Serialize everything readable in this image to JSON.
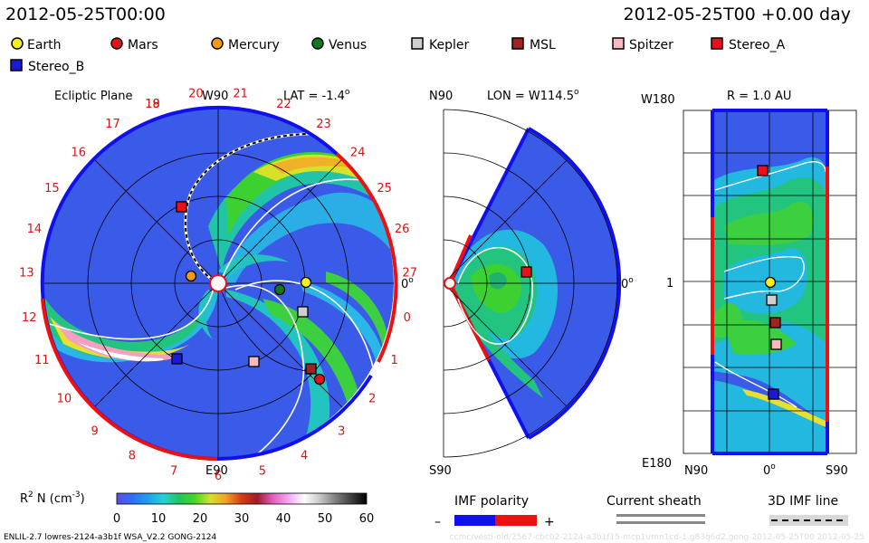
{
  "header": {
    "datetime_left": "2012-05-25T00:00",
    "datetime_right": "2012-05-25T00 +0.00 day"
  },
  "legend": {
    "items": [
      {
        "label": "Earth",
        "color": "#f7ef1e",
        "shape": "circle"
      },
      {
        "label": "Mars",
        "color": "#e8111a",
        "shape": "circle"
      },
      {
        "label": "Mercury",
        "color": "#f59a14",
        "shape": "circle"
      },
      {
        "label": "Venus",
        "color": "#117a21",
        "shape": "circle"
      },
      {
        "label": "Kepler",
        "color": "#cfcfcf",
        "shape": "square"
      },
      {
        "label": "MSL",
        "color": "#9e2323",
        "shape": "square"
      },
      {
        "label": "Spitzer",
        "color": "#f7b8c2",
        "shape": "square"
      },
      {
        "label": "Stereo_A",
        "color": "#e8111a",
        "shape": "square"
      },
      {
        "label": "Stereo_B",
        "color": "#1a1ad6",
        "shape": "square"
      }
    ]
  },
  "panels": {
    "ecliptic": {
      "title": "Ecliptic Plane",
      "top_label": "W90",
      "lat_label": "LAT = -1.4",
      "lat_sup": "o",
      "right_label": "0",
      "right_sup": "o",
      "bottom_label": "E90",
      "ring_numbers": [
        "19",
        "20",
        "21",
        "22",
        "23",
        "24",
        "25",
        "26",
        "27",
        "0",
        "1",
        "2",
        "3",
        "4",
        "5",
        "6",
        "7",
        "8",
        "9",
        "10",
        "11",
        "12",
        "13",
        "14",
        "15",
        "16",
        "17",
        "18"
      ]
    },
    "meridional": {
      "top_left": "N90",
      "lon_label": "LON = W114.5",
      "lon_sup": "o",
      "right_label": "0",
      "right_sup": "o",
      "bottom_left": "S90"
    },
    "radial": {
      "top_left": "W180",
      "title": "R = 1.0 AU",
      "left_mid": "1",
      "bottom_left": "E180",
      "x_labels": [
        "N90",
        "0",
        "S90"
      ],
      "x_mid_sup": "o"
    }
  },
  "colorbar": {
    "label_main": "R",
    "label_sup": "2",
    "label_rest": " N (cm",
    "label_exp": "-3",
    "label_end": ")",
    "ticks": [
      "0",
      "10",
      "20",
      "30",
      "40",
      "50",
      "60"
    ],
    "colors": [
      "#5a4de6",
      "#2f6ff2",
      "#1f9fef",
      "#22d4d4",
      "#21c45a",
      "#48d624",
      "#d6e02a",
      "#f0a028",
      "#d23c14",
      "#a01a2a",
      "#e060c0",
      "#f2a8f2",
      "#ffffff",
      "#c8c8c8",
      "#808080",
      "#404040",
      "#000000"
    ]
  },
  "imf": {
    "title": "IMF polarity",
    "minus": "–",
    "plus": "+",
    "neg_color": "#1010ee",
    "pos_color": "#ee1010"
  },
  "sheath": {
    "title": "Current sheath"
  },
  "imfline": {
    "title": "3D IMF line"
  },
  "footer": {
    "model": "ENLIL-2.7 lowres-2124-a3b1f WSA_V2.2 GONG-2124",
    "watermark": "ccmc/vesti-old/2567-cbc02-2124-a3b1f15-mcp1umn1cd-1.g83q6d2.gong-2012-05-25T00    2012-05-25"
  },
  "chart_data": [
    {
      "type": "heatmap",
      "title": "Ecliptic Plane",
      "view": "polar, heliocentric ecliptic plane",
      "quantity": "R^2 N (cm^-3)",
      "value_range": [
        0,
        60
      ],
      "bodies": [
        "Earth",
        "Mars",
        "Mercury",
        "Venus",
        "Kepler",
        "MSL",
        "Spitzer",
        "Stereo_A",
        "Stereo_B"
      ]
    },
    {
      "type": "heatmap",
      "title": "LON = W114.5",
      "view": "meridional slice N90 to S90",
      "quantity": "R^2 N (cm^-3)",
      "value_range": [
        0,
        60
      ],
      "bodies": [
        "Stereo_A"
      ]
    },
    {
      "type": "heatmap",
      "title": "R = 1.0 AU",
      "view": "latitude N90–S90 vs longitude W180–E180",
      "quantity": "R^2 N (cm^-3)",
      "value_range": [
        0,
        60
      ],
      "bodies": [
        "Stereo_A",
        "Earth",
        "Kepler",
        "MSL",
        "Spitzer",
        "Stereo_B"
      ]
    }
  ]
}
